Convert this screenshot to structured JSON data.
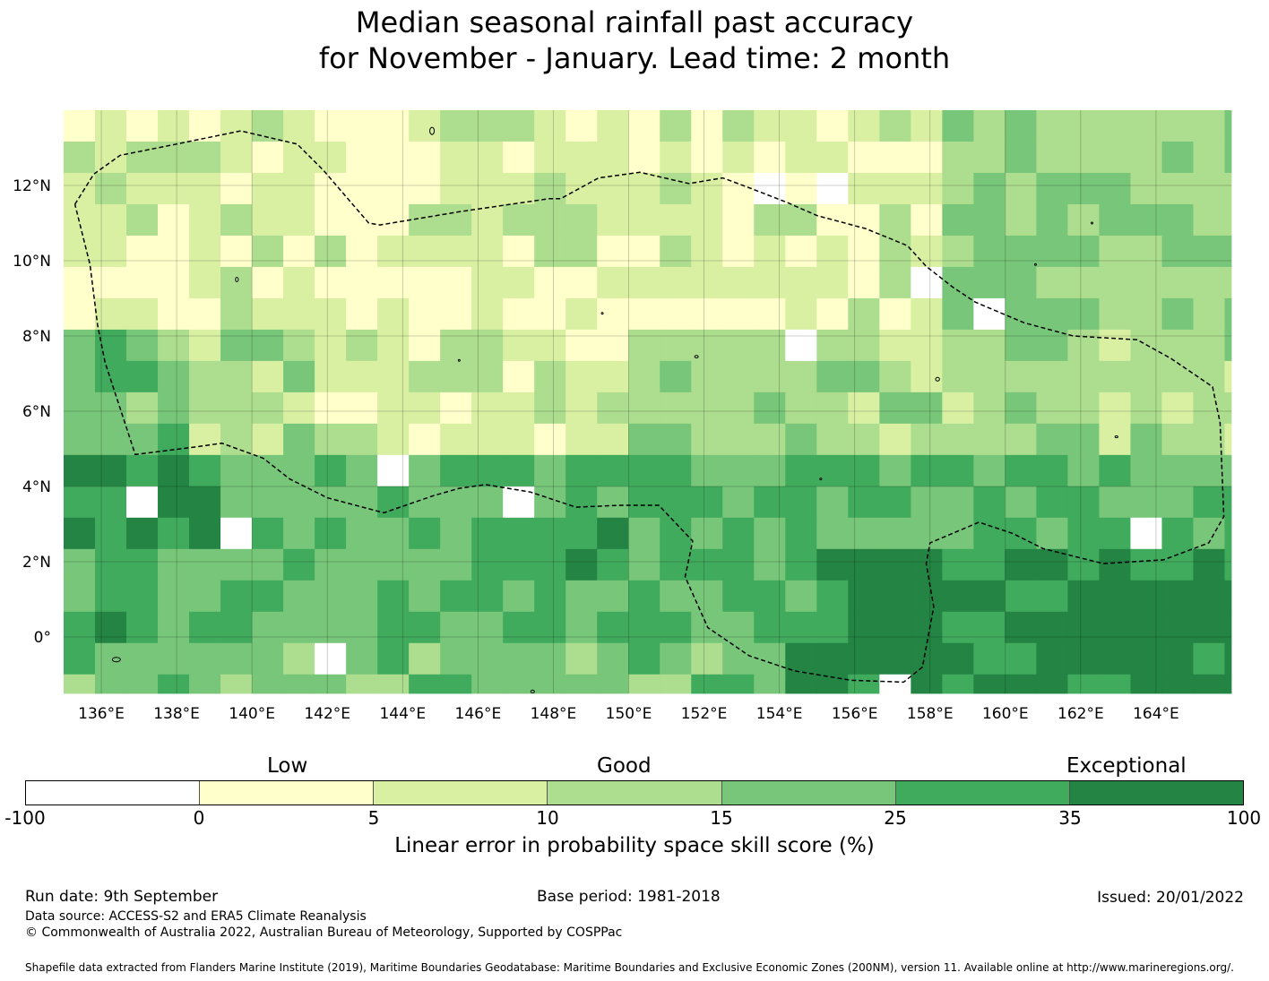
{
  "title": {
    "line1": "Median seasonal rainfall past accuracy",
    "line2": "for November - January. Lead time: 2 month"
  },
  "map": {
    "x_ticks": [
      "136°E",
      "138°E",
      "140°E",
      "142°E",
      "144°E",
      "146°E",
      "148°E",
      "150°E",
      "152°E",
      "154°E",
      "156°E",
      "158°E",
      "160°E",
      "162°E",
      "164°E"
    ],
    "y_ticks": [
      "12°N",
      "10°N",
      "8°N",
      "6°N",
      "4°N",
      "2°N",
      "0°"
    ],
    "x_tick_values": [
      136,
      138,
      140,
      142,
      144,
      146,
      148,
      150,
      152,
      154,
      156,
      158,
      160,
      162,
      164
    ],
    "y_tick_values": [
      12,
      10,
      8,
      6,
      4,
      2,
      0
    ],
    "lon_range": [
      135.0,
      166.0
    ],
    "lat_range": [
      -1.5,
      14.0
    ],
    "grid": true,
    "region_outline": "dashed boundary (Exclusive Economic Zone)"
  },
  "legend": {
    "category_labels": [
      "Low",
      "Good",
      "Exceptional"
    ],
    "boundaries": [
      "-100",
      "0",
      "5",
      "10",
      "15",
      "25",
      "35",
      "100"
    ],
    "colors": [
      "#ffffff",
      "#ffffcc",
      "#d9f0a3",
      "#addd8e",
      "#78c679",
      "#41ab5d",
      "#238443"
    ],
    "label": "Linear error in probability space skill score (%)"
  },
  "footer": {
    "run_date": "Run date: 9th September",
    "base_period": "Base period: 1981-2018",
    "issued": "Issued: 20/01/2022",
    "data_source": "Data source: ACCESS-S2 and ERA5 Climate Reanalysis",
    "copyright": "© Commonwealth of Australia 2022, Australian Bureau of Meteorology, Supported by COSPPac",
    "shapefile": "Shapefile data extracted from Flanders Marine Institute (2019), Maritime Boundaries Geodatabase: Maritime Boundaries and Exclusive Economic Zones (200NM), version 11. Available online at http://www.marineregions.org/."
  }
}
